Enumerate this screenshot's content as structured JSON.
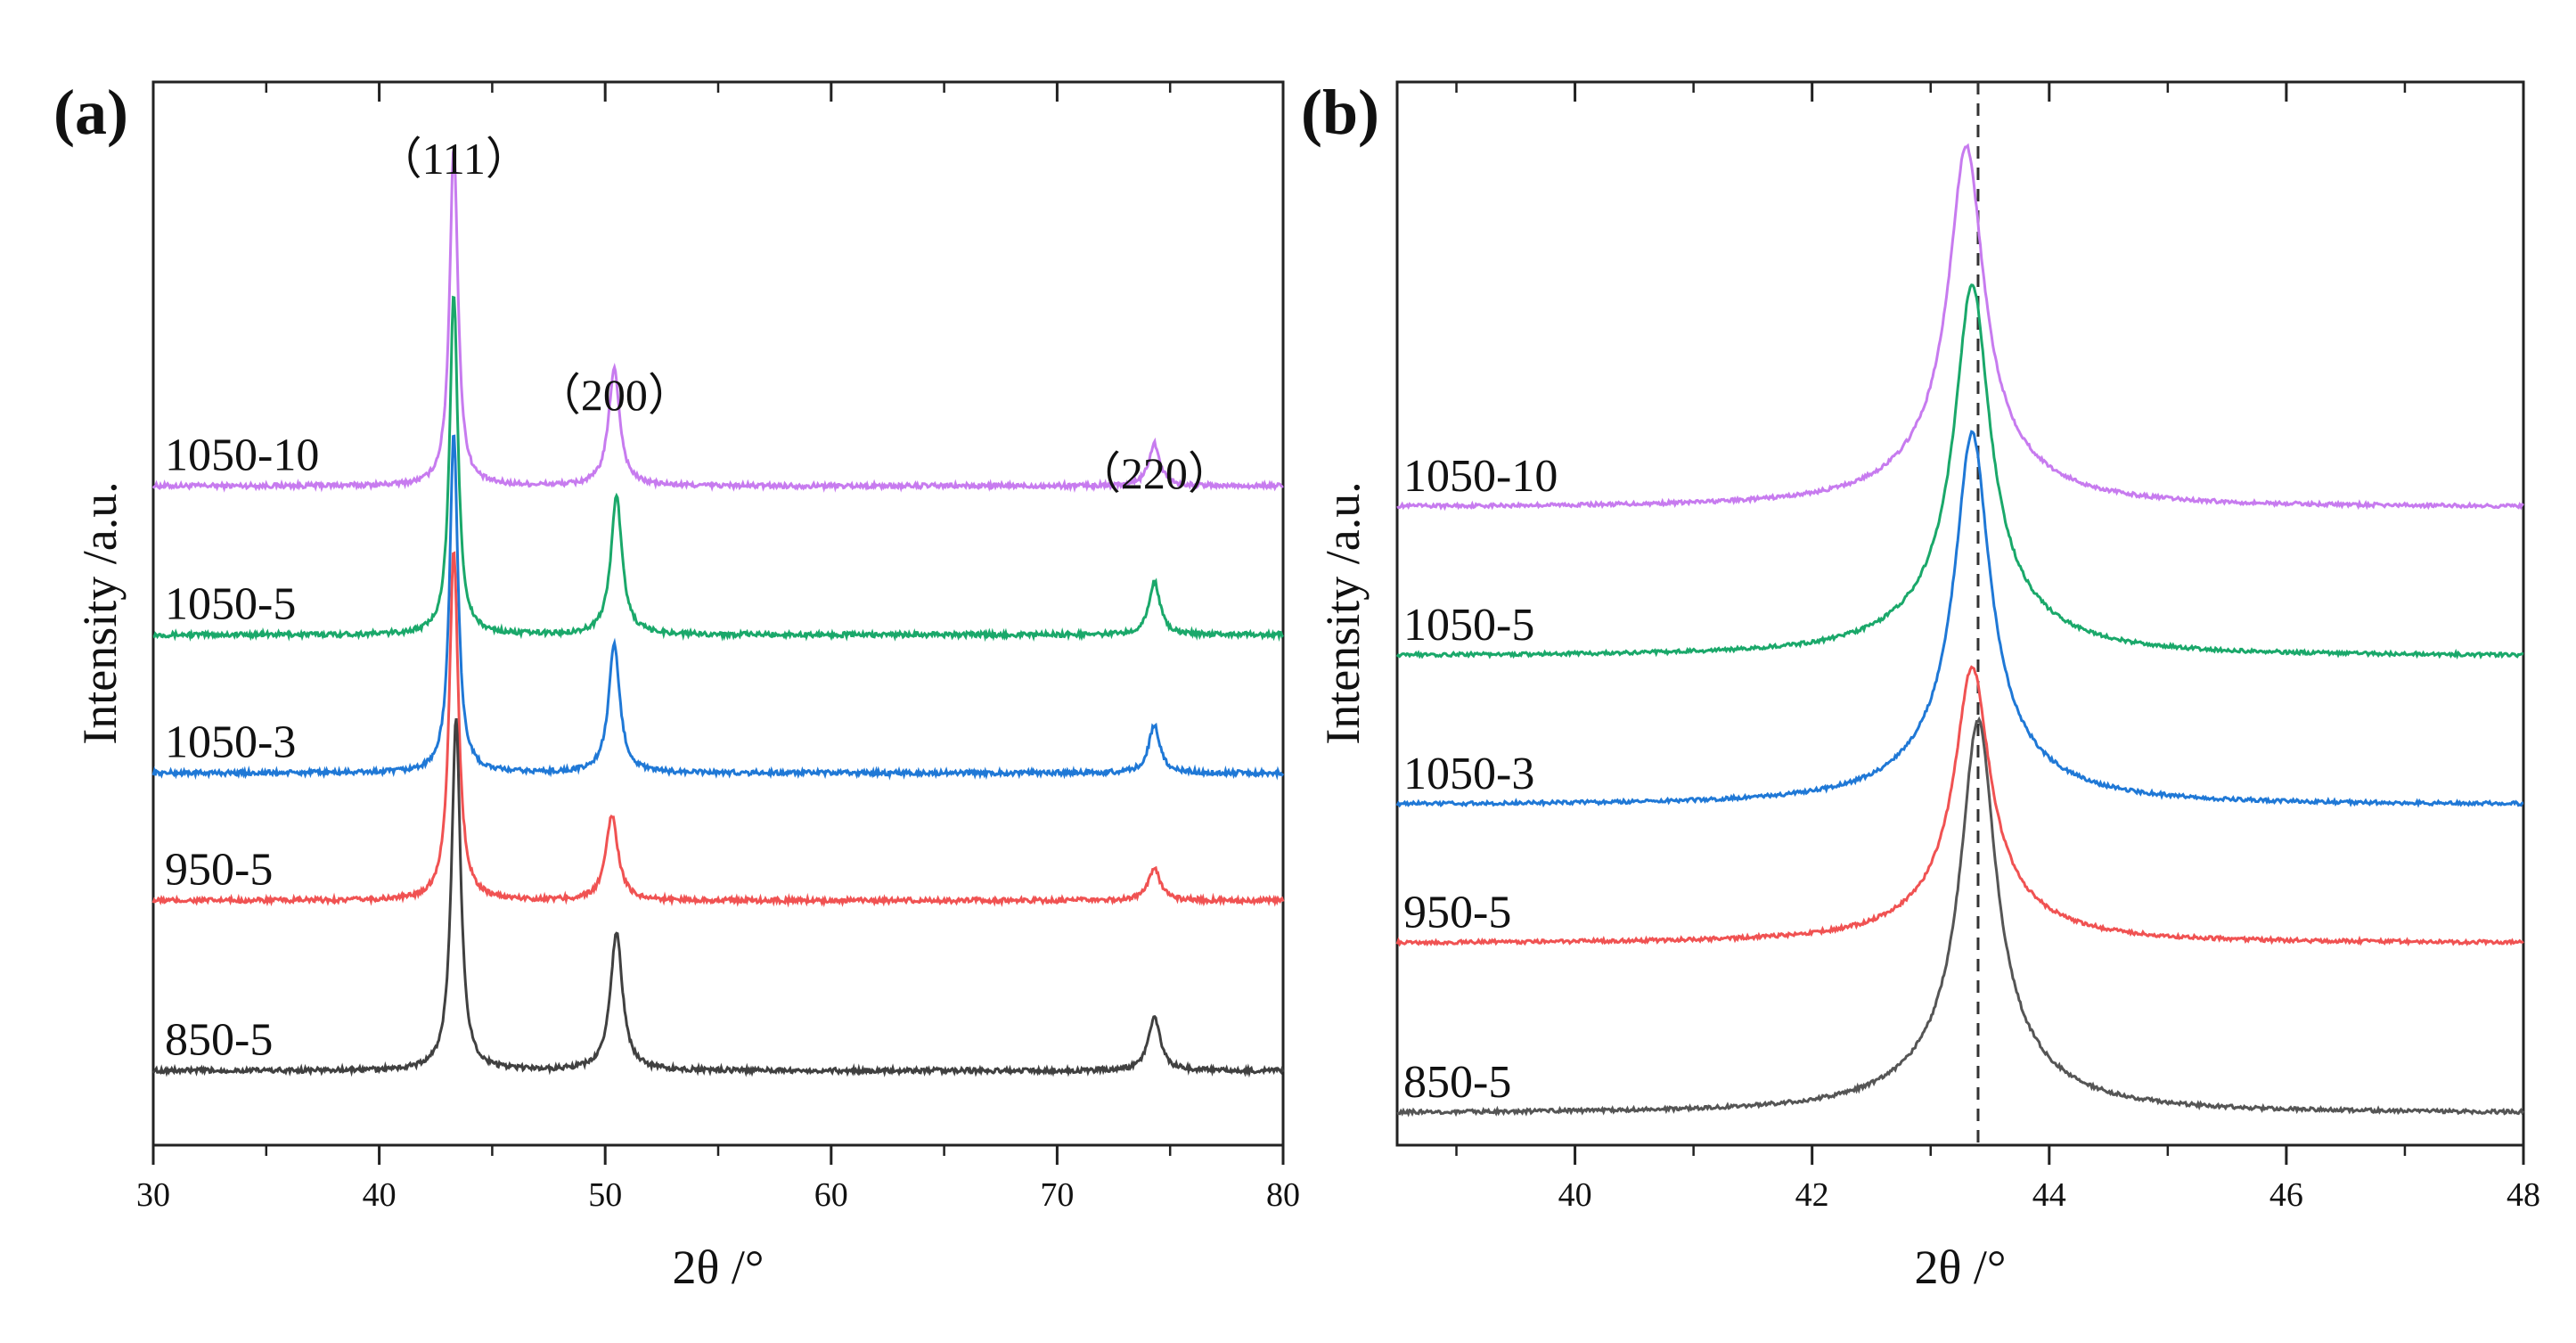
{
  "chart_data": [
    {
      "panel": "(a)",
      "type": "line",
      "xlabel": "2θ /°",
      "ylabel": "Intensity /a.u.",
      "xlim": [
        30,
        80
      ],
      "xticks": [
        30,
        40,
        50,
        60,
        70,
        80
      ],
      "ylim": [
        0,
        100
      ],
      "legend": "inline labels at left of each trace",
      "series": [
        {
          "name": "1050-10",
          "color": "#c77bef",
          "baseline": 62,
          "peaks": [
            {
              "x": 43.3,
              "h": 32,
              "w": 0.22
            },
            {
              "x": 50.4,
              "h": 11,
              "w": 0.3
            },
            {
              "x": 74.3,
              "h": 4,
              "w": 0.3
            }
          ]
        },
        {
          "name": "1050-5",
          "color": "#1aa86a",
          "baseline": 48,
          "peaks": [
            {
              "x": 43.3,
              "h": 32,
              "w": 0.22
            },
            {
              "x": 50.5,
              "h": 13,
              "w": 0.3
            },
            {
              "x": 74.3,
              "h": 5,
              "w": 0.3
            }
          ]
        },
        {
          "name": "1050-3",
          "color": "#1f78d6",
          "baseline": 35,
          "peaks": [
            {
              "x": 43.3,
              "h": 32,
              "w": 0.22
            },
            {
              "x": 50.4,
              "h": 12,
              "w": 0.3
            },
            {
              "x": 74.3,
              "h": 4.5,
              "w": 0.3
            }
          ]
        },
        {
          "name": "950-5",
          "color": "#f05252",
          "baseline": 23,
          "peaks": [
            {
              "x": 43.3,
              "h": 33,
              "w": 0.24
            },
            {
              "x": 50.3,
              "h": 8,
              "w": 0.32
            },
            {
              "x": 74.3,
              "h": 3,
              "w": 0.32
            }
          ]
        },
        {
          "name": "850-5",
          "color": "#404040",
          "baseline": 7,
          "peaks": [
            {
              "x": 43.4,
              "h": 33,
              "w": 0.24
            },
            {
              "x": 50.5,
              "h": 13,
              "w": 0.32
            },
            {
              "x": 74.3,
              "h": 5,
              "w": 0.32
            }
          ]
        }
      ],
      "annotations": [
        {
          "text": "（111）",
          "x": 43.3
        },
        {
          "text": "（200）",
          "x": 50.4
        },
        {
          "text": "（220）",
          "x": 74.3
        }
      ]
    },
    {
      "panel": "(b)",
      "type": "line",
      "xlabel": "2θ /°",
      "ylabel": "Intensity /a.u.",
      "xlim": [
        38.5,
        48
      ],
      "xticks": [
        40,
        42,
        44,
        46,
        48
      ],
      "ylim": [
        0,
        100
      ],
      "reference_line_x": 43.4,
      "legend": "inline labels at left of each trace",
      "series": [
        {
          "name": "1050-10",
          "color": "#c77bef",
          "baseline": 60,
          "peak_x": 43.3,
          "h": 34
        },
        {
          "name": "1050-5",
          "color": "#1aa86a",
          "baseline": 46,
          "peak_x": 43.35,
          "h": 35
        },
        {
          "name": "1050-3",
          "color": "#1f78d6",
          "baseline": 32,
          "peak_x": 43.35,
          "h": 35
        },
        {
          "name": "950-5",
          "color": "#f05252",
          "baseline": 19,
          "peak_x": 43.35,
          "h": 26
        },
        {
          "name": "850-5",
          "color": "#555555",
          "baseline": 3,
          "peak_x": 43.4,
          "h": 37
        }
      ]
    }
  ]
}
